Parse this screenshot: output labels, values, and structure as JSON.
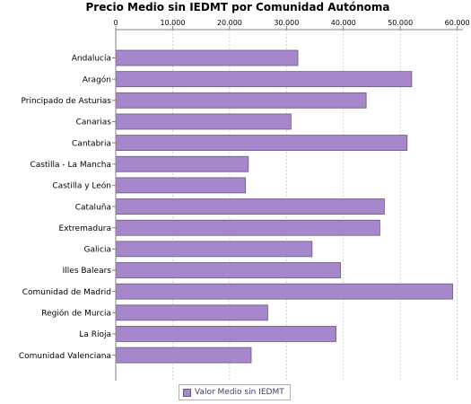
{
  "chart_data": {
    "type": "bar",
    "orientation": "horizontal",
    "title": "Precio Medio sin IEDMT por Comunidad Autónoma",
    "xlabel": "",
    "ylabel": "",
    "xlim": [
      0,
      61000
    ],
    "ticks": [
      {
        "value": 0,
        "label": "0"
      },
      {
        "value": 10000,
        "label": "10.000"
      },
      {
        "value": 20000,
        "label": "20.000"
      },
      {
        "value": 30000,
        "label": "30.000"
      },
      {
        "value": 40000,
        "label": "40.000"
      },
      {
        "value": 50000,
        "label": "50.000"
      },
      {
        "value": 60000,
        "label": "60.000"
      }
    ],
    "tick_position": "top",
    "grid": true,
    "legend_position": "bottom",
    "color": "#a687cc",
    "categories": [
      "Andalucía",
      "Aragón",
      "Principado de Asturias",
      "Canarias",
      "Cantabria",
      "Castilla - La Mancha",
      "Castilla y León",
      "Cataluña",
      "Extremadura",
      "Galicia",
      "Illes Balears",
      "Comunidad de Madrid",
      "Región de Murcia",
      "La Rioja",
      "Comunidad Valenciana"
    ],
    "series": [
      {
        "name": "Valor Medio sin IEDMT",
        "values": [
          32000,
          52000,
          44000,
          30800,
          51200,
          23300,
          22800,
          47200,
          46400,
          34500,
          39500,
          59200,
          26700,
          38700,
          23800
        ]
      }
    ]
  }
}
